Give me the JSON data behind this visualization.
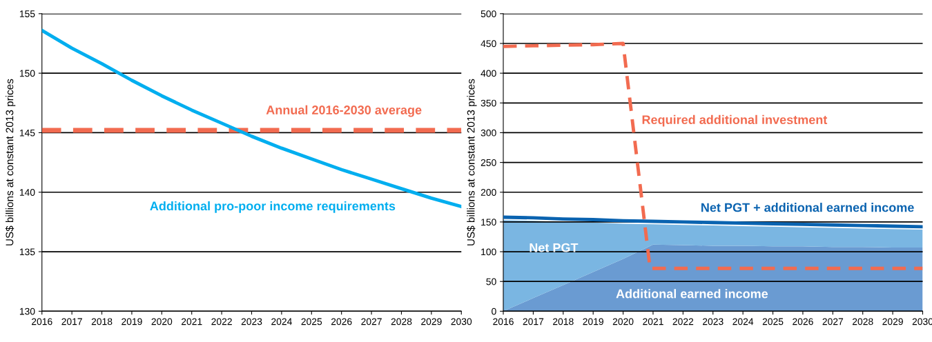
{
  "chart_data": [
    {
      "type": "line",
      "ylabel": "US$ billions at constant 2013 prices",
      "x": [
        2016,
        2017,
        2018,
        2019,
        2020,
        2021,
        2022,
        2023,
        2024,
        2025,
        2026,
        2027,
        2028,
        2029,
        2030
      ],
      "xlim": [
        2016,
        2030
      ],
      "xticks": [
        2016,
        2017,
        2018,
        2019,
        2020,
        2021,
        2022,
        2023,
        2024,
        2025,
        2026,
        2027,
        2028,
        2029,
        2030
      ],
      "ylim": [
        130,
        155
      ],
      "yticks": [
        130,
        135,
        140,
        145,
        150,
        155
      ],
      "grid": "y",
      "series": [
        {
          "name": "Additional pro-poor income requirements",
          "color": "#00aeef",
          "values": [
            153.6,
            152.1,
            150.8,
            149.4,
            148.1,
            146.9,
            145.8,
            144.7,
            143.7,
            142.8,
            141.9,
            141.1,
            140.3,
            139.5,
            138.8
          ]
        }
      ],
      "ref_lines": [
        {
          "axis": "y",
          "value": 145.2,
          "label": "Annual 2016-2030 average",
          "color": "#f26b50",
          "line_style": "dashed"
        }
      ]
    },
    {
      "type": "area",
      "stacked": true,
      "ylabel": "US$ billions at constant 2013 prices",
      "x": [
        2016,
        2017,
        2018,
        2019,
        2020,
        2021,
        2022,
        2023,
        2024,
        2025,
        2026,
        2027,
        2028,
        2029,
        2030
      ],
      "xlim": [
        2016,
        2030
      ],
      "xticks": [
        2016,
        2017,
        2018,
        2019,
        2020,
        2021,
        2022,
        2023,
        2024,
        2025,
        2026,
        2027,
        2028,
        2029,
        2030
      ],
      "ylim": [
        0,
        500
      ],
      "yticks": [
        0,
        50,
        100,
        150,
        200,
        250,
        300,
        350,
        400,
        450,
        500
      ],
      "grid": "y",
      "series": [
        {
          "name": "Additional earned income",
          "color": "#6a9bd2",
          "values": [
            0,
            22,
            44,
            66,
            88,
            112,
            111,
            110,
            110,
            109,
            109,
            108,
            108,
            107,
            107
          ]
        },
        {
          "name": "Net PGT",
          "color": "#7ab6e2",
          "values": [
            153,
            130,
            106,
            83,
            59,
            34,
            34,
            34,
            33,
            33,
            32,
            32,
            31,
            31,
            30
          ]
        },
        {
          "name": "Net PGT + additional earned income",
          "type": "line",
          "color": "#0a63b0",
          "values": [
            158,
            157,
            155,
            154,
            152,
            151,
            150,
            149,
            148,
            147,
            146,
            145,
            144,
            143,
            142
          ]
        },
        {
          "name": "Required additional investment",
          "type": "line",
          "line_style": "dashed",
          "color": "#f26b50",
          "x": [
            2016,
            2017,
            2018,
            2019,
            2020,
            2020.9,
            2030
          ],
          "values": [
            445,
            446,
            447,
            448,
            450,
            72,
            72
          ]
        }
      ]
    }
  ]
}
